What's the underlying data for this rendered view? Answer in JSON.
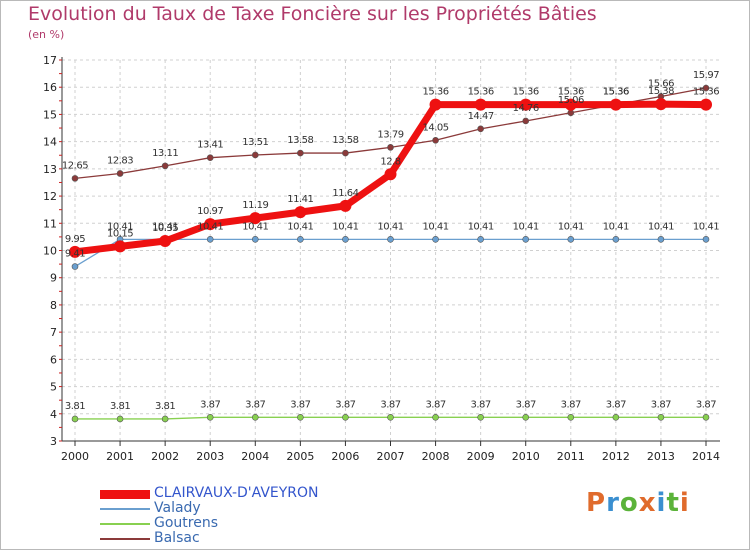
{
  "title": "Evolution du Taux de Taxe Foncière sur les Propriétés Bâties",
  "subtitle": "(en %)",
  "logo": {
    "text": "Proxiti",
    "colors": [
      "#e06b2c",
      "#3a8fd0",
      "#5bb33a",
      "#e06b2c",
      "#3a8fd0",
      "#5bb33a",
      "#e06b2c"
    ]
  },
  "chart_data": {
    "type": "line",
    "x": [
      "2000",
      "2001",
      "2002",
      "2003",
      "2004",
      "2005",
      "2006",
      "2007",
      "2008",
      "2009",
      "2010",
      "2011",
      "2012",
      "2013",
      "2014"
    ],
    "ylim": [
      3,
      17
    ],
    "yticks": [
      "3",
      "4",
      "5",
      "6",
      "7",
      "8",
      "9",
      "10",
      "11",
      "12",
      "13",
      "14",
      "15",
      "16",
      "17"
    ],
    "grid": true,
    "legend_position": "bottom-left",
    "series": [
      {
        "name": "CLAIRVAUX-D'AVEYRON",
        "color": "#ee1111",
        "values": [
          9.95,
          10.15,
          10.35,
          10.97,
          11.19,
          11.41,
          11.64,
          12.8,
          15.36,
          15.36,
          15.36,
          15.36,
          15.36,
          15.38,
          15.36
        ],
        "labels": [
          "9.95",
          "10.15",
          "10.35",
          "10.97",
          "11.19",
          "11.41",
          "11.64",
          "12.8",
          "15.36",
          "15.36",
          "15.36",
          "15.36",
          "15.36",
          "15.38",
          "15.36"
        ]
      },
      {
        "name": "Valady",
        "color": "#6a9fcf",
        "values": [
          9.41,
          10.41,
          10.41,
          10.41,
          10.41,
          10.41,
          10.41,
          10.41,
          10.41,
          10.41,
          10.41,
          10.41,
          10.41,
          10.41,
          10.41
        ],
        "labels": [
          "9.41",
          "10.41",
          "10.41",
          "10.41",
          "10.41",
          "10.41",
          "10.41",
          "10.41",
          "10.41",
          "10.41",
          "10.41",
          "10.41",
          "10.41",
          "10.41",
          "10.41"
        ]
      },
      {
        "name": "Goutrens",
        "color": "#88d050",
        "values": [
          3.81,
          3.81,
          3.81,
          3.87,
          3.87,
          3.87,
          3.87,
          3.87,
          3.87,
          3.87,
          3.87,
          3.87,
          3.87,
          3.87,
          3.87
        ],
        "labels": [
          "3.81",
          "3.81",
          "3.81",
          "3.87",
          "3.87",
          "3.87",
          "3.87",
          "3.87",
          "3.87",
          "3.87",
          "3.87",
          "3.87",
          "3.87",
          "3.87",
          "3.87"
        ]
      },
      {
        "name": "Balsac",
        "color": "#8b3a3a",
        "values": [
          12.65,
          12.83,
          13.11,
          13.41,
          13.51,
          13.58,
          13.58,
          13.79,
          14.05,
          14.47,
          14.76,
          15.06,
          15.36,
          15.66,
          15.97
        ],
        "labels": [
          "12.65",
          "12.83",
          "13.11",
          "13.41",
          "13.51",
          "13.58",
          "13.58",
          "13.79",
          "14.05",
          "14.47",
          "14.76",
          "15.06",
          "15.36",
          "15.66",
          "15.97"
        ]
      }
    ]
  }
}
